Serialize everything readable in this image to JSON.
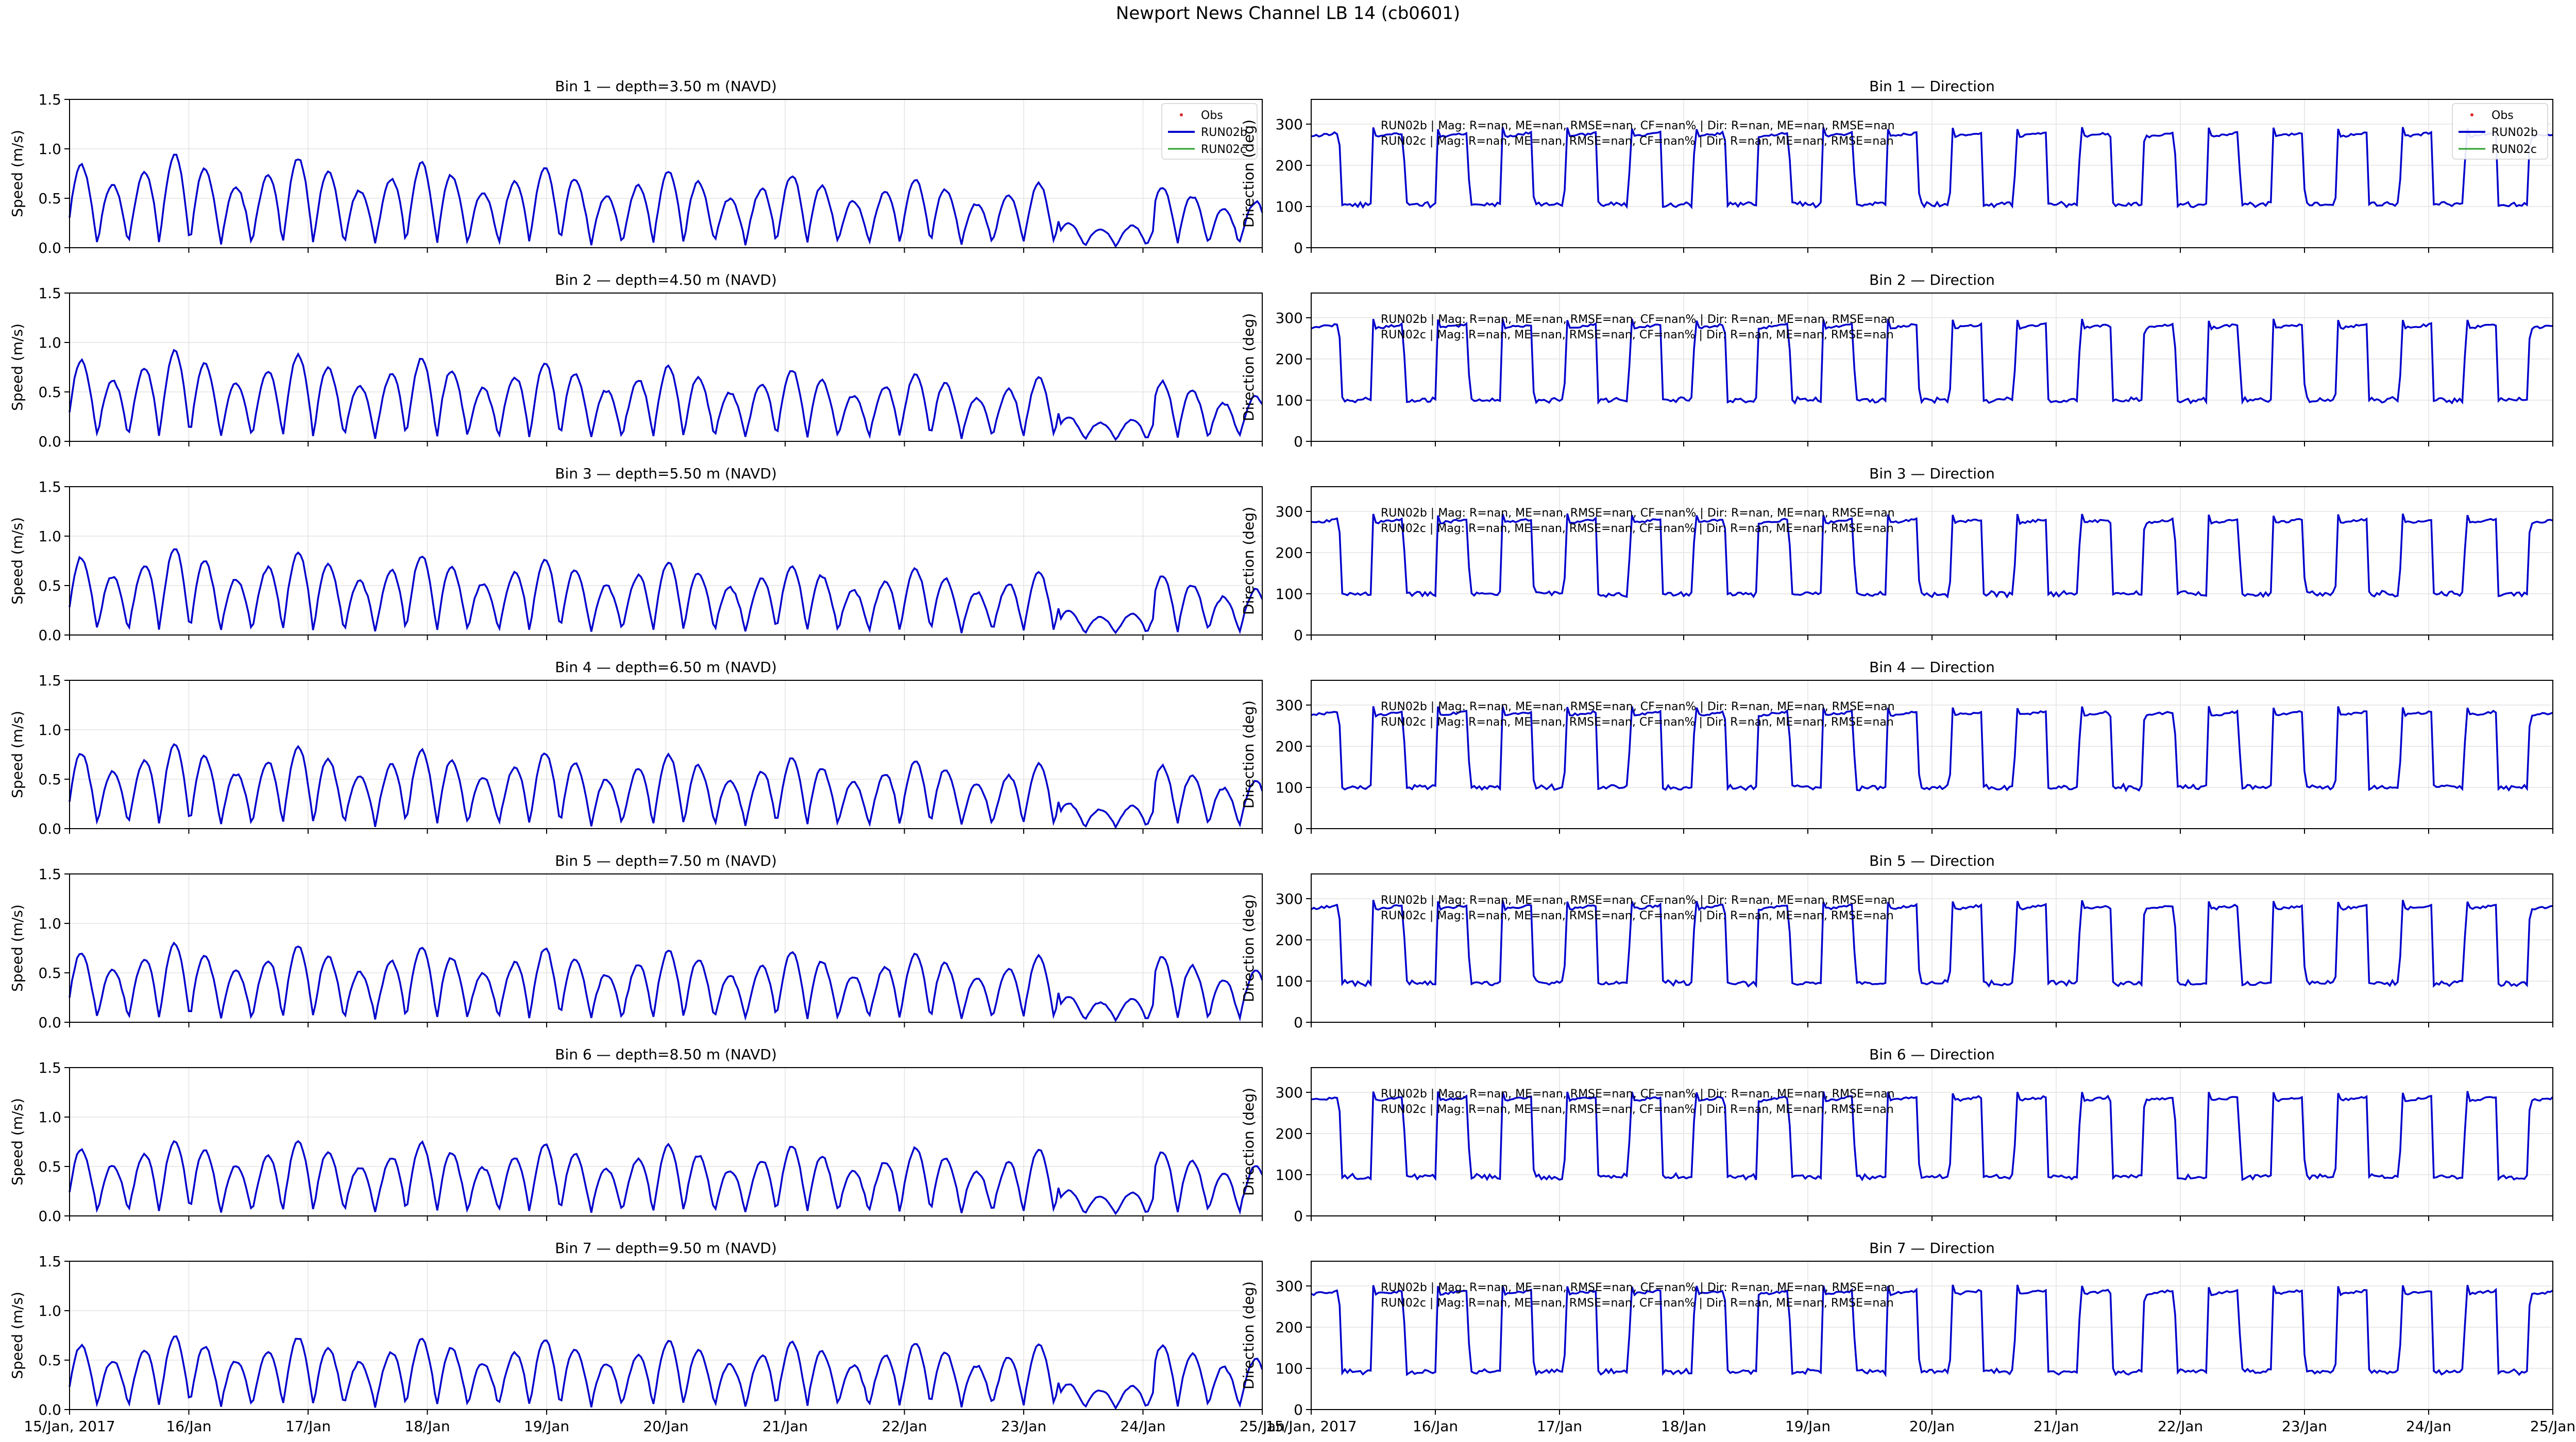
{
  "figure": {
    "title": "Newport News Channel LB 14 (cb0601)"
  },
  "style": {
    "obs_color": "#d62728",
    "run02b_color": "#0000cc",
    "run02c_color": "#2ca02c",
    "grid_color": "#e3e3e3"
  },
  "legend": {
    "placement": "upper-right",
    "entries": [
      "Obs",
      "RUN02b",
      "RUN02c"
    ]
  },
  "chart_data": {
    "type": "line",
    "x_ticks": [
      "15/Jan, 2017",
      "16/Jan",
      "17/Jan",
      "18/Jan",
      "19/Jan",
      "20/Jan",
      "21/Jan",
      "22/Jan",
      "23/Jan",
      "24/Jan",
      "25/Jan"
    ],
    "xlim_days": [
      0,
      10
    ],
    "speed": {
      "ylabel": "Speed (m/s)",
      "ylim": [
        0,
        1.5
      ],
      "yticks": [
        "0.0",
        "0.5",
        "1.0",
        "1.5"
      ]
    },
    "direction": {
      "ylabel": "Direction (deg)",
      "ylim": [
        0,
        360
      ],
      "yticks": [
        "0",
        "100",
        "200",
        "300"
      ]
    },
    "bins": [
      {
        "speed_title": "Bin 1 — depth=3.50 m (NAVD)",
        "dir_title": "Bin 1 — Direction",
        "legend": true,
        "stats": [
          "RUN02b | Mag: R=nan, ME=nan, RMSE=nan, CF=nan% | Dir: R=nan, ME=nan, RMSE=nan",
          "RUN02c | Mag: R=nan, ME=nan, RMSE=nan, CF=nan% | Dir: R=nan, ME=nan, RMSE=nan"
        ],
        "speed_peak": 0.95,
        "speed_amp_end": 0.5,
        "ebb_dir": 270,
        "flood_dir": 105
      },
      {
        "speed_title": "Bin 2 — depth=4.50 m (NAVD)",
        "dir_title": "Bin 2 — Direction",
        "legend": false,
        "stats": [
          "RUN02b | Mag: R=nan, ME=nan, RMSE=nan, CF=nan% | Dir: R=nan, ME=nan, RMSE=nan",
          "RUN02c | Mag: R=nan, ME=nan, RMSE=nan, CF=nan% | Dir: R=nan, ME=nan, RMSE=nan"
        ],
        "speed_peak": 0.92,
        "speed_amp_end": 0.5,
        "ebb_dir": 275,
        "flood_dir": 100
      },
      {
        "speed_title": "Bin 3 — depth=5.50 m (NAVD)",
        "dir_title": "Bin 3 — Direction",
        "legend": false,
        "stats": [
          "RUN02b | Mag: R=nan, ME=nan, RMSE=nan, CF=nan% | Dir: R=nan, ME=nan, RMSE=nan",
          "RUN02c | Mag: R=nan, ME=nan, RMSE=nan, CF=nan% | Dir: R=nan, ME=nan, RMSE=nan"
        ],
        "speed_peak": 0.88,
        "speed_amp_end": 0.5,
        "ebb_dir": 272,
        "flood_dir": 100
      },
      {
        "speed_title": "Bin 4 — depth=6.50 m (NAVD)",
        "dir_title": "Bin 4 — Direction",
        "legend": false,
        "stats": [
          "RUN02b | Mag: R=nan, ME=nan, RMSE=nan, CF=nan% | Dir: R=nan, ME=nan, RMSE=nan",
          "RUN02c | Mag: R=nan, ME=nan, RMSE=nan, CF=nan% | Dir: R=nan, ME=nan, RMSE=nan"
        ],
        "speed_peak": 0.85,
        "speed_amp_end": 0.55,
        "ebb_dir": 275,
        "flood_dir": 100
      },
      {
        "speed_title": "Bin 5 — depth=7.50 m (NAVD)",
        "dir_title": "Bin 5 — Direction",
        "legend": false,
        "stats": [
          "RUN02b | Mag: R=nan, ME=nan, RMSE=nan, CF=nan% | Dir: R=nan, ME=nan, RMSE=nan",
          "RUN02c | Mag: R=nan, ME=nan, RMSE=nan, CF=nan% | Dir: R=nan, ME=nan, RMSE=nan"
        ],
        "speed_peak": 0.78,
        "speed_amp_end": 0.6,
        "ebb_dir": 275,
        "flood_dir": 95
      },
      {
        "speed_title": "Bin 6 — depth=8.50 m (NAVD)",
        "dir_title": "Bin 6 — Direction",
        "legend": false,
        "stats": [
          "RUN02b | Mag: R=nan, ME=nan, RMSE=nan, CF=nan% | Dir: R=nan, ME=nan, RMSE=nan",
          "RUN02c | Mag: R=nan, ME=nan, RMSE=nan, CF=nan% | Dir: R=nan, ME=nan, RMSE=nan"
        ],
        "speed_peak": 0.75,
        "speed_amp_end": 0.6,
        "ebb_dir": 280,
        "flood_dir": 95
      },
      {
        "speed_title": "Bin 7 — depth=9.50 m (NAVD)",
        "dir_title": "Bin 7 — Direction",
        "legend": false,
        "stats": [
          "RUN02b | Mag: R=nan, ME=nan, RMSE=nan, CF=nan% | Dir: R=nan, ME=nan, RMSE=nan",
          "RUN02c | Mag: R=nan, ME=nan, RMSE=nan, CF=nan% | Dir: R=nan, ME=nan, RMSE=nan"
        ],
        "speed_peak": 0.72,
        "speed_amp_end": 0.6,
        "ebb_dir": 280,
        "flood_dir": 92
      }
    ]
  }
}
